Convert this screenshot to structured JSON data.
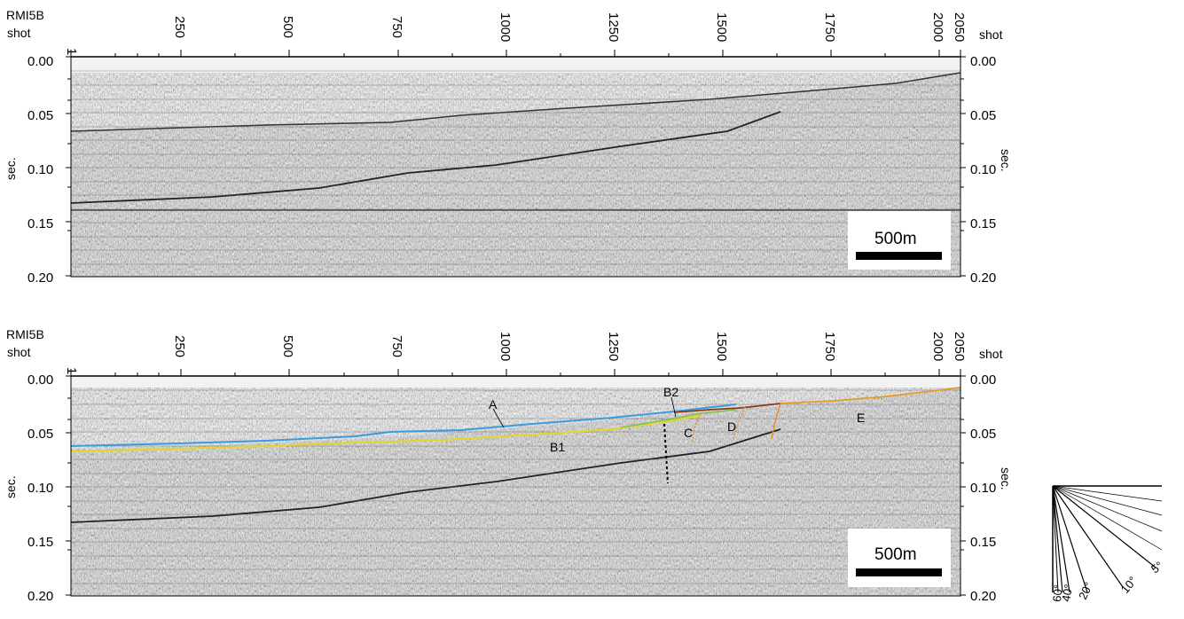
{
  "line_name": "RMI5B",
  "shot_label": "shot",
  "sec_label": "sec.",
  "x_ticks": [
    "1",
    "250",
    "500",
    "750",
    "1000",
    "1250",
    "1500",
    "1750",
    "2000",
    "2050"
  ],
  "y_ticks": [
    "0.00",
    "0.05",
    "0.10",
    "0.15",
    "0.20"
  ],
  "scale_bar_label": "500m",
  "units": [
    "A",
    "B1",
    "B2",
    "C",
    "D",
    "E"
  ],
  "angle_labels": [
    "5°",
    "10°",
    "20°",
    "40°",
    "60°"
  ],
  "colors": {
    "unit_a": "#3a9be0",
    "unit_b": "#e3d62a",
    "unit_b_green": "#7bc24a",
    "unit_c": "#e0902a",
    "unit_d": "#8a3a1a",
    "unit_e": "#e69a28"
  }
}
